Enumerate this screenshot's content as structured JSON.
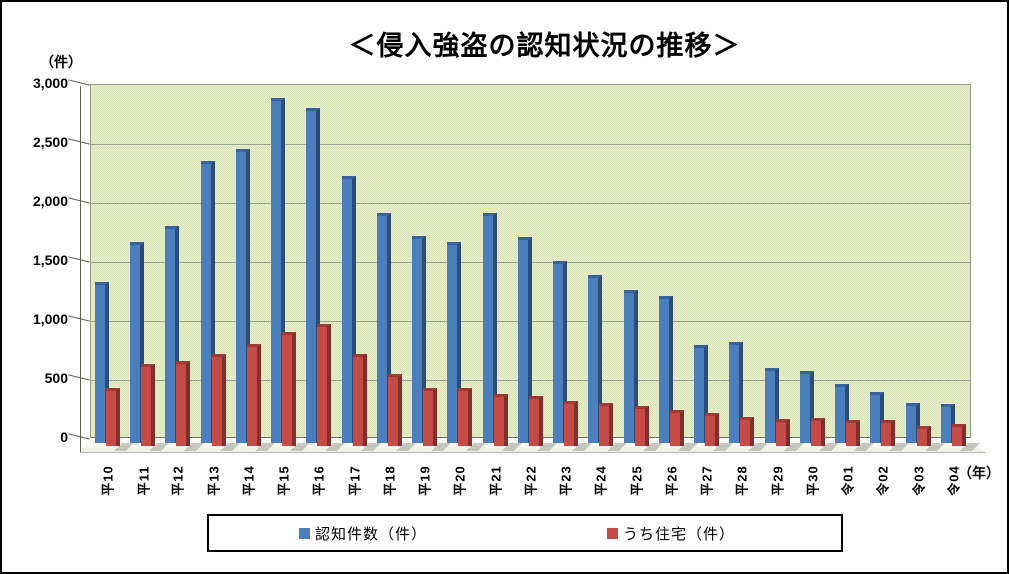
{
  "title": "＜侵入強盗の認知状況の推移＞",
  "chart_data": {
    "type": "bar",
    "title": "＜侵入強盗の認知状況の推移＞",
    "y_unit_label": "（件）",
    "x_unit_label": "（年）",
    "categories": [
      "平10",
      "平11",
      "平12",
      "平13",
      "平14",
      "平15",
      "平16",
      "平17",
      "平18",
      "平19",
      "平20",
      "平21",
      "平22",
      "平23",
      "平24",
      "平25",
      "平26",
      "平27",
      "平28",
      "平29",
      "平30",
      "令01",
      "令02",
      "令03",
      "令04"
    ],
    "series": [
      {
        "name": "認知件数（件）",
        "color": "#4d7ebc",
        "edge_color": "#2c4d77",
        "values": [
          1320,
          1660,
          1800,
          2350,
          2450,
          2880,
          2800,
          2220,
          1910,
          1710,
          1660,
          1910,
          1700,
          1500,
          1380,
          1250,
          1200,
          790,
          810,
          590,
          570,
          460,
          390,
          300,
          290
        ]
      },
      {
        "name": "うち住宅（件）",
        "color": "#c44b47",
        "edge_color": "#822f2c",
        "values": [
          420,
          630,
          650,
          710,
          800,
          900,
          970,
          710,
          540,
          420,
          420,
          370,
          360,
          310,
          300,
          270,
          240,
          210,
          180,
          160,
          170,
          150,
          150,
          100,
          120
        ]
      }
    ],
    "ylim": [
      0,
      3000
    ],
    "ytick_step": 500,
    "ytick_labels": [
      "0",
      "500",
      "1,000",
      "1,500",
      "2,000",
      "2,500",
      "3,000"
    ],
    "grid": true,
    "legend_position": "bottom",
    "plot_bg_color": "#dce6bc",
    "gridline_color": "#9aa38b",
    "x_labels_rotated_degrees": -90
  },
  "colors": {
    "figure_border": "#000000",
    "background": "#ffffff",
    "series_blue": "#4d7ebc",
    "series_red": "#c44b47"
  }
}
